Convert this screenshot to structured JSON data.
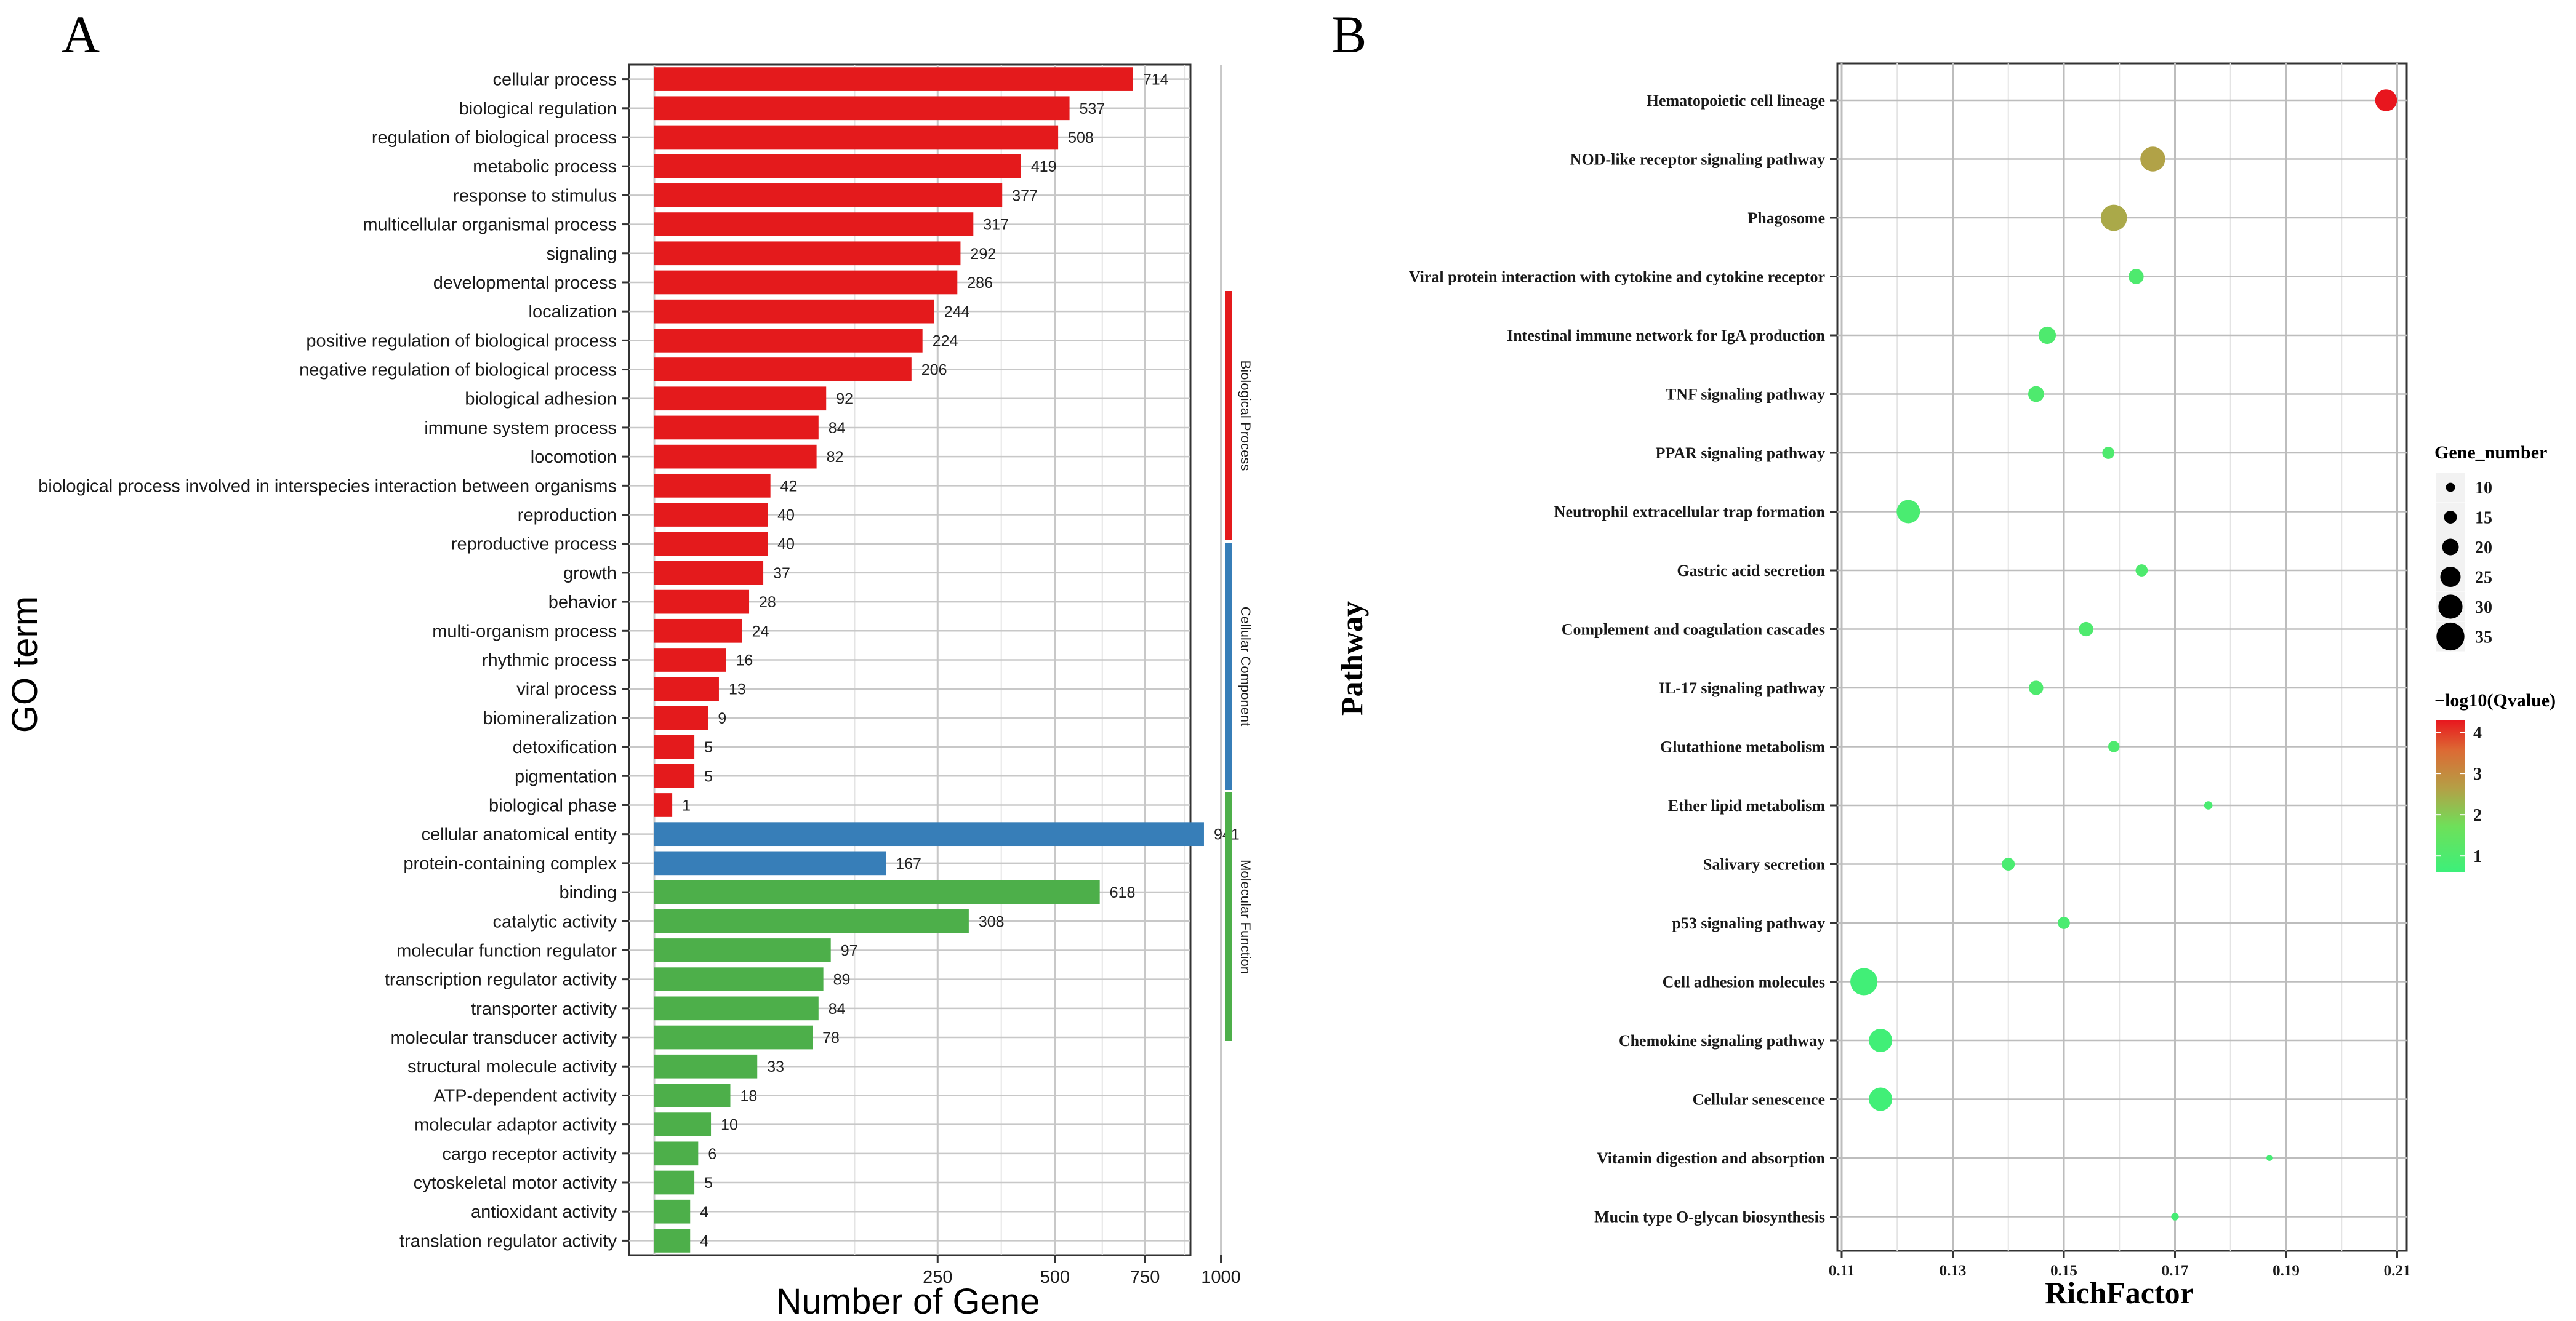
{
  "panel_labels": {
    "left": "A",
    "right": "B"
  },
  "chart_data": [
    {
      "panel": "A",
      "type": "bar",
      "orientation": "horizontal",
      "xlabel": "Number of Gene",
      "ylabel": "GO term",
      "x_scale": "sqrt",
      "x_ticks": [
        250,
        500,
        750,
        1000
      ],
      "xlim": [
        0,
        1100
      ],
      "grid": true,
      "value_labels": true,
      "categories": [
        "cellular process",
        "biological regulation",
        "regulation of biological process",
        "metabolic process",
        "response to stimulus",
        "multicellular organismal process",
        "signaling",
        "developmental process",
        "localization",
        "positive regulation of biological process",
        "negative regulation of biological process",
        "biological adhesion",
        "immune system process",
        "locomotion",
        "biological process involved in interspecies interaction between organisms",
        "reproduction",
        "reproductive process",
        "growth",
        "behavior",
        "multi-organism process",
        "rhythmic process",
        "viral process",
        "biomineralization",
        "detoxification",
        "pigmentation",
        "biological phase",
        "cellular anatomical entity",
        "protein-containing complex",
        "binding",
        "catalytic activity",
        "molecular function regulator",
        "transcription regulator activity",
        "transporter activity",
        "molecular transducer activity",
        "structural molecule activity",
        "ATP-dependent activity",
        "molecular adaptor activity",
        "cargo receptor activity",
        "cytoskeletal motor activity",
        "antioxidant activity",
        "translation regulator activity"
      ],
      "values": [
        714,
        537,
        508,
        419,
        377,
        317,
        292,
        286,
        244,
        224,
        206,
        92,
        84,
        82,
        42,
        40,
        40,
        37,
        28,
        24,
        16,
        13,
        9,
        5,
        5,
        1,
        941,
        167,
        618,
        308,
        97,
        89,
        84,
        78,
        33,
        18,
        10,
        6,
        5,
        4,
        4
      ],
      "groups": [
        {
          "name": "Biological Process",
          "start": 0,
          "end": 25,
          "color": "#e41a1c"
        },
        {
          "name": "Cellular Component",
          "start": 26,
          "end": 27,
          "color": "#377eb8"
        },
        {
          "name": "Molecular Function",
          "start": 28,
          "end": 40,
          "color": "#4daf4a"
        }
      ]
    },
    {
      "panel": "B",
      "type": "scatter",
      "xlabel": "RichFactor",
      "ylabel": "Pathway",
      "xlim": [
        0.11,
        0.212
      ],
      "x_ticks": [
        "0.11",
        "0.13",
        "0.15",
        "0.17",
        "0.19",
        "0.21"
      ],
      "grid": true,
      "categories": [
        "Hematopoietic cell lineage",
        "NOD-like receptor signaling pathway",
        "Phagosome",
        "Viral protein interaction with cytokine and cytokine receptor",
        "Intestinal immune network for IgA production",
        "TNF signaling pathway",
        "PPAR signaling pathway",
        "Neutrophil extracellular trap formation",
        "Gastric acid secretion",
        "Complement and coagulation cascades",
        "IL-17 signaling pathway",
        "Glutathione metabolism",
        "Ether lipid metabolism",
        "Salivary secretion",
        "p53 signaling pathway",
        "Cell adhesion molecules",
        "Chemokine signaling pathway",
        "Cellular senescence",
        "Vitamin digestion and absorption",
        "Mucin type O-glycan biosynthesis"
      ],
      "points": [
        {
          "x": 0.208,
          "size": 27,
          "qvalue": 4.3
        },
        {
          "x": 0.166,
          "size": 31,
          "qvalue": 2.6
        },
        {
          "x": 0.159,
          "size": 33,
          "qvalue": 2.5
        },
        {
          "x": 0.163,
          "size": 18,
          "qvalue": 1.0
        },
        {
          "x": 0.147,
          "size": 21,
          "qvalue": 1.0
        },
        {
          "x": 0.145,
          "size": 19,
          "qvalue": 1.0
        },
        {
          "x": 0.158,
          "size": 14,
          "qvalue": 1.0
        },
        {
          "x": 0.122,
          "size": 29,
          "qvalue": 0.9
        },
        {
          "x": 0.164,
          "size": 14,
          "qvalue": 1.0
        },
        {
          "x": 0.154,
          "size": 17,
          "qvalue": 1.0
        },
        {
          "x": 0.145,
          "size": 17,
          "qvalue": 1.0
        },
        {
          "x": 0.159,
          "size": 13,
          "qvalue": 1.0
        },
        {
          "x": 0.176,
          "size": 9,
          "qvalue": 0.9
        },
        {
          "x": 0.14,
          "size": 15,
          "qvalue": 0.9
        },
        {
          "x": 0.15,
          "size": 14,
          "qvalue": 0.9
        },
        {
          "x": 0.114,
          "size": 34,
          "qvalue": 0.7
        },
        {
          "x": 0.117,
          "size": 29,
          "qvalue": 0.7
        },
        {
          "x": 0.117,
          "size": 29,
          "qvalue": 0.7
        },
        {
          "x": 0.187,
          "size": 6,
          "qvalue": 0.8
        },
        {
          "x": 0.17,
          "size": 8,
          "qvalue": 0.8
        }
      ],
      "size_legend": {
        "title": "Gene_number",
        "values": [
          10,
          15,
          20,
          25,
          30,
          35
        ]
      },
      "color_legend": {
        "title": "−log10(Qvalue)",
        "ticks": [
          1,
          2,
          3,
          4
        ],
        "range": [
          0.6,
          4.3
        ],
        "low_color": "#3cf07a",
        "high_color": "#e8161e"
      }
    }
  ]
}
